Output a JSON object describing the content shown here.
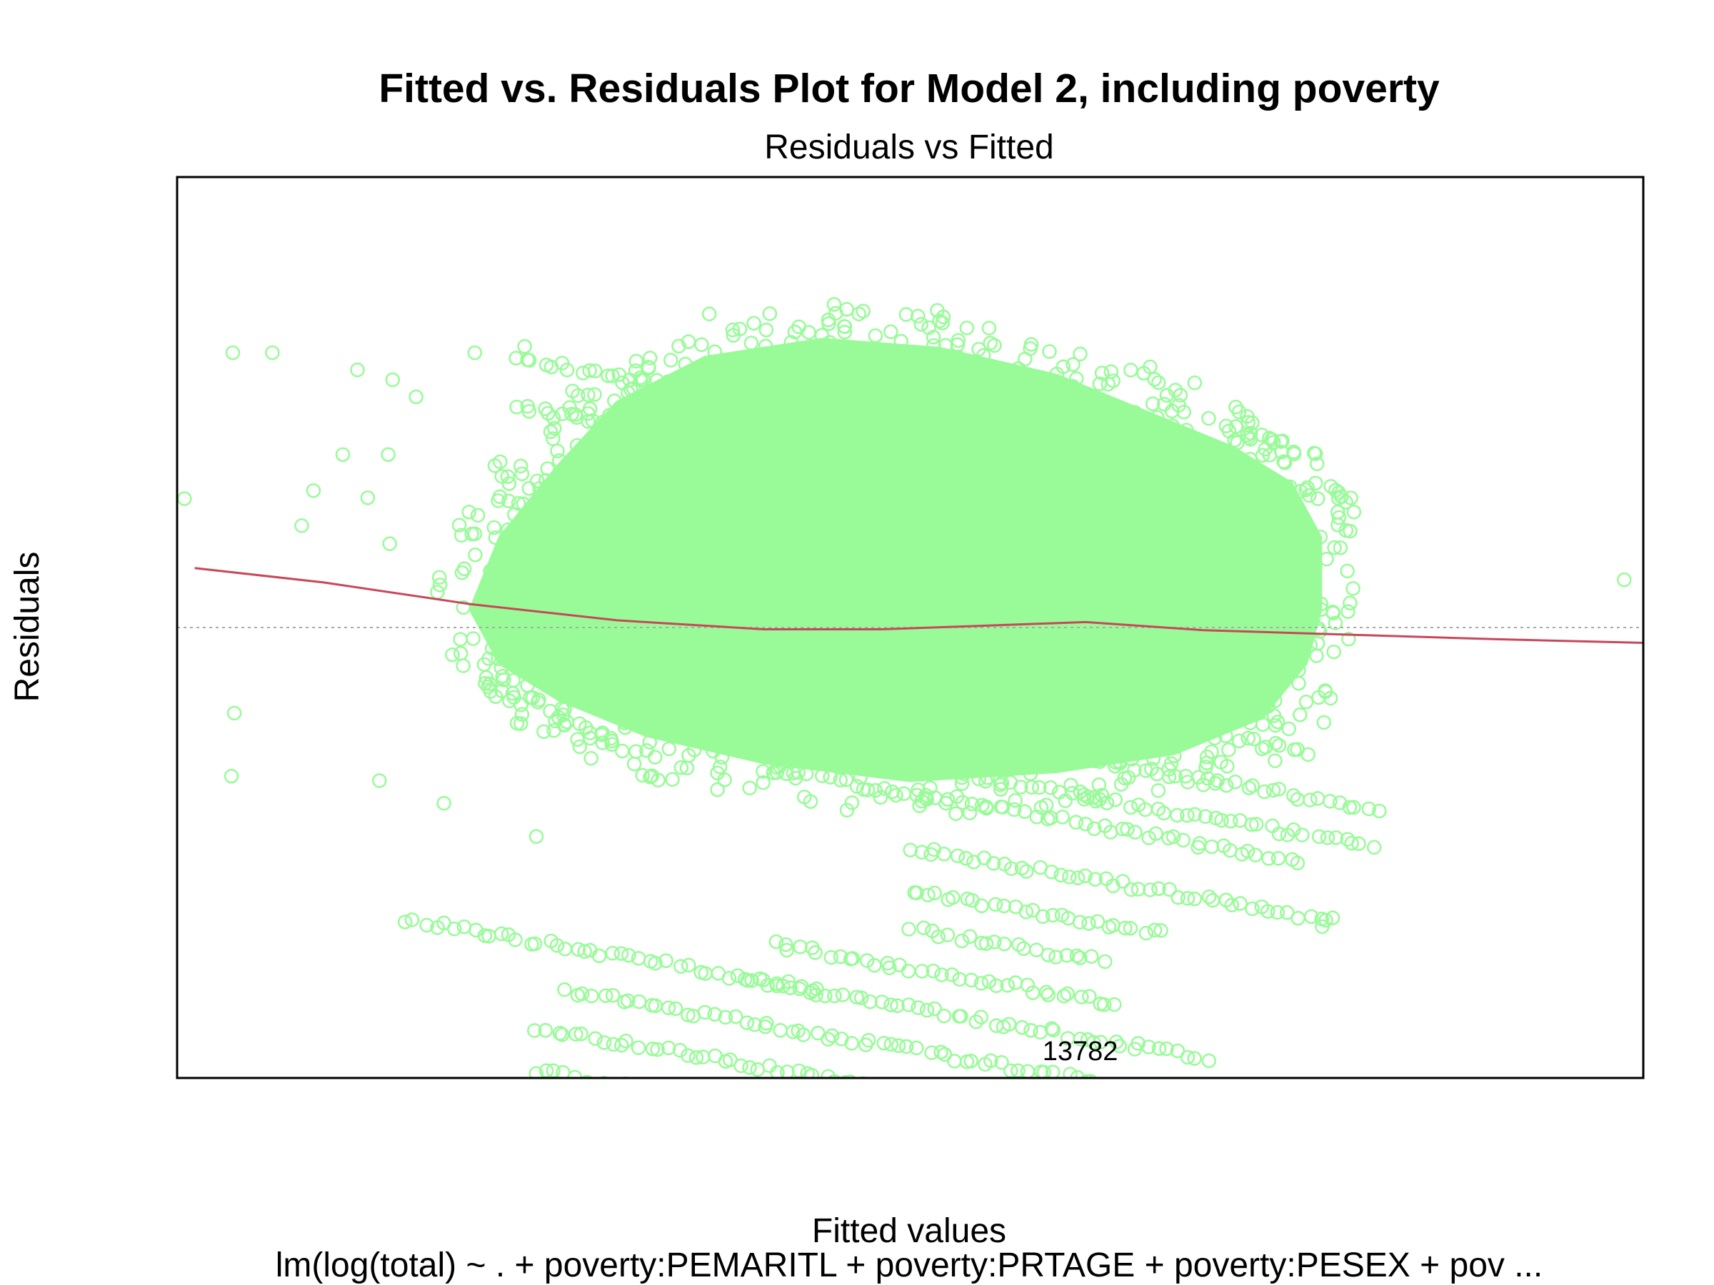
{
  "chart_data": {
    "type": "scatter",
    "title": "Fitted vs. Residuals Plot for Model 2, including poverty",
    "subtitle": "Residuals vs Fitted",
    "xlabel": "Fitted values",
    "ylabel": "Residuals",
    "caption": "lm(log(total) ~ . + poverty:PEMARITL + poverty:PRTAGE + poverty:PESEX + pov ...",
    "xlim": [
      0,
      100
    ],
    "ylim": [
      -50,
      50
    ],
    "axes_ticks_shown": false,
    "grid": false,
    "reference_line": {
      "y": 0,
      "style": "dotted",
      "color": "#aaaaaa"
    },
    "colors": {
      "points": "#98fb98",
      "smooth": "#c8475a",
      "frame": "#000000"
    },
    "point_label_text": "13782",
    "labeled_points": [
      {
        "label": "13782",
        "x": 61.6,
        "y": -48.0
      }
    ],
    "smooth": {
      "x": [
        1.2,
        10,
        20,
        30,
        40,
        48,
        55,
        62,
        70,
        80,
        90,
        100
      ],
      "y": [
        6.6,
        5.0,
        2.6,
        0.8,
        -0.2,
        -0.2,
        0.2,
        0.6,
        -0.3,
        -0.8,
        -1.3,
        -1.7
      ]
    },
    "outliers": [
      {
        "x": 3.8,
        "y": 30.5
      },
      {
        "x": 6.5,
        "y": 30.5
      },
      {
        "x": 12.3,
        "y": 28.6
      },
      {
        "x": 14.7,
        "y": 27.5
      },
      {
        "x": 16.3,
        "y": 25.6
      },
      {
        "x": 20.3,
        "y": 30.5
      },
      {
        "x": 23.7,
        "y": 31.2
      },
      {
        "x": 0.5,
        "y": 14.3
      },
      {
        "x": 3.9,
        "y": -9.5
      },
      {
        "x": 3.7,
        "y": -16.5
      },
      {
        "x": 8.5,
        "y": 11.3
      },
      {
        "x": 9.3,
        "y": 15.2
      },
      {
        "x": 11.3,
        "y": 19.2
      },
      {
        "x": 13.0,
        "y": 14.4
      },
      {
        "x": 14.4,
        "y": 19.2
      },
      {
        "x": 14.5,
        "y": 9.3
      },
      {
        "x": 13.8,
        "y": -17.0
      },
      {
        "x": 18.2,
        "y": -19.5
      },
      {
        "x": 24.5,
        "y": -23.2
      },
      {
        "x": 76.5,
        "y": 12.6
      },
      {
        "x": 98.7,
        "y": 5.3
      },
      {
        "x": 74.8,
        "y": 1.2
      },
      {
        "x": 76.5,
        "y": -6.2
      },
      {
        "x": 77.0,
        "y": -0.2
      },
      {
        "x": 78.1,
        "y": -33.2
      },
      {
        "x": 77.8,
        "y": 14.3
      },
      {
        "x": 78.4,
        "y": 7.6
      },
      {
        "x": 79.0,
        "y": 0.5
      },
      {
        "x": 36.3,
        "y": 34.8
      },
      {
        "x": 46.5,
        "y": 34.8
      },
      {
        "x": 55.0,
        "y": 30.2
      },
      {
        "x": 51.6,
        "y": 31.3
      },
      {
        "x": 63.7,
        "y": 28.4
      }
    ],
    "bands": [
      {
        "x0": 23,
        "x1": 39.6,
        "y0": 22.4,
        "slope": -0.28
      },
      {
        "x0": 23,
        "x1": 56.1,
        "y0": 17.0,
        "slope": -0.28
      },
      {
        "x0": 30,
        "x1": 56.9,
        "y0": 2.7,
        "slope": -0.28
      },
      {
        "x0": 32,
        "x1": 60.9,
        "y0": -2.3,
        "slope": -0.28
      },
      {
        "x0": 42,
        "x1": 77.3,
        "y0": -6.2,
        "slope": -0.28
      },
      {
        "x0": 44,
        "x1": 81.8,
        "y0": -11.3,
        "slope": -0.28
      },
      {
        "x0": 52,
        "x1": 81.5,
        "y0": -15.5,
        "slope": -0.28
      },
      {
        "x0": 40,
        "x1": 76.4,
        "y0": -18.5,
        "slope": -0.28
      },
      {
        "x0": 50,
        "x1": 79.1,
        "y0": -24.5,
        "slope": -0.28
      },
      {
        "x0": 50,
        "x1": 67.2,
        "y0": -29.2,
        "slope": -0.28
      },
      {
        "x0": 50,
        "x1": 63.1,
        "y0": -33.4,
        "slope": -0.28
      },
      {
        "x0": 40.6,
        "x1": 64.1,
        "y0": -37.8,
        "slope": -0.28
      },
      {
        "x0": 39.1,
        "x1": 70.2,
        "y0": -42.2,
        "slope": -0.28
      },
      {
        "x0": 26.6,
        "x1": 63.8,
        "y0": -46.9,
        "slope": -0.28
      },
      {
        "x0": 24.6,
        "x1": 61.8,
        "y0": -51.6,
        "slope": -0.28
      },
      {
        "x0": 24.6,
        "x1": 66.6,
        "y0": -56.3,
        "slope": -0.28
      },
      {
        "x0": 25.6,
        "x1": 64.3,
        "y0": -61.0,
        "slope": -0.28
      },
      {
        "x0": 33.6,
        "x1": 64.8,
        "y0": -66.0,
        "slope": -0.28
      },
      {
        "x0": 31.0,
        "x1": 64.5,
        "y0": -69.7,
        "slope": -0.28
      },
      {
        "x0": 35.3,
        "x1": 65.2,
        "y0": -74.3,
        "slope": -0.28
      },
      {
        "x0": 21.6,
        "x1": 55.8,
        "y0": -70.2,
        "slope": -0.28
      },
      {
        "x0": 15.6,
        "x1": 43.8,
        "y0": -42.0,
        "slope": -0.28
      }
    ]
  }
}
